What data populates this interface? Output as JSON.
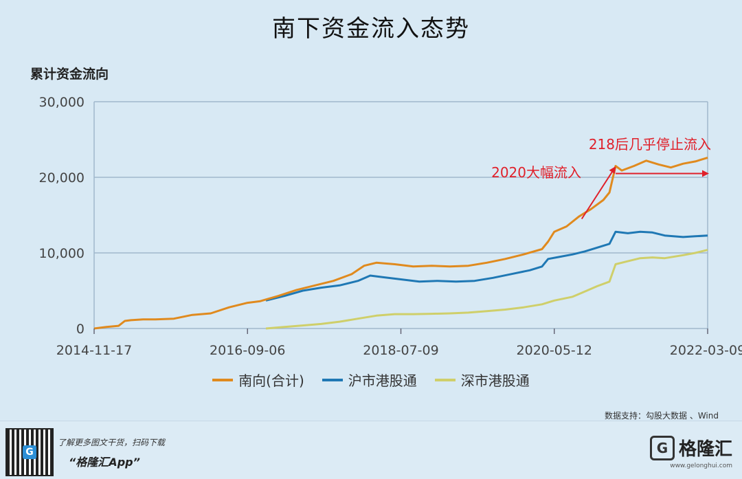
{
  "page": {
    "title": "南下资金流入态势",
    "source": "数据支持：勾股大数据 、Wind"
  },
  "footer": {
    "qr_label": "G",
    "line1": "了解更多图文干货，扫码下载",
    "line2": "“格隆汇App”",
    "brand_icon": "G",
    "brand_name": "格隆汇",
    "brand_url": "www.gelonghui.com"
  },
  "colors": {
    "south": "#e08a1e",
    "sh": "#1f78b4",
    "sz": "#cfcf6a",
    "annotation": "#e0202a",
    "grid": "#9fb8cc"
  },
  "chart_data": {
    "type": "line",
    "title": "南下资金流入态势",
    "ylabel": "累计资金流向",
    "xlabel": "",
    "ylim": [
      0,
      30000
    ],
    "yticks": [
      0,
      10000,
      20000,
      30000
    ],
    "ytick_labels": [
      "0",
      "10,000",
      "20,000",
      "30,000"
    ],
    "x_index_range": [
      0,
      100
    ],
    "xtick_labels": [
      "2014-11-17",
      "2016-09-06",
      "2018-07-09",
      "2020-05-12",
      "2022-03-09"
    ],
    "xtick_positions": [
      0,
      25,
      50,
      75,
      100
    ],
    "legend_position": "bottom-center",
    "series": [
      {
        "name": "南向(合计)",
        "color_key": "south",
        "points": [
          [
            0,
            0
          ],
          [
            2,
            200
          ],
          [
            4,
            350
          ],
          [
            5,
            1000
          ],
          [
            6,
            1100
          ],
          [
            8,
            1200
          ],
          [
            10,
            1200
          ],
          [
            13,
            1300
          ],
          [
            16,
            1800
          ],
          [
            19,
            2000
          ],
          [
            22,
            2800
          ],
          [
            25,
            3400
          ],
          [
            27,
            3600
          ],
          [
            30,
            4300
          ],
          [
            33,
            5100
          ],
          [
            36,
            5700
          ],
          [
            39,
            6300
          ],
          [
            42,
            7200
          ],
          [
            44,
            8300
          ],
          [
            46,
            8700
          ],
          [
            49,
            8500
          ],
          [
            52,
            8200
          ],
          [
            55,
            8300
          ],
          [
            58,
            8200
          ],
          [
            61,
            8300
          ],
          [
            64,
            8700
          ],
          [
            67,
            9200
          ],
          [
            70,
            9800
          ],
          [
            73,
            10500
          ],
          [
            74,
            11500
          ],
          [
            75,
            12800
          ],
          [
            77,
            13500
          ],
          [
            79,
            14800
          ],
          [
            81,
            15800
          ],
          [
            83,
            17000
          ],
          [
            84,
            18000
          ],
          [
            85,
            21500
          ],
          [
            86,
            20900
          ],
          [
            88,
            21500
          ],
          [
            90,
            22200
          ],
          [
            92,
            21700
          ],
          [
            94,
            21300
          ],
          [
            96,
            21800
          ],
          [
            98,
            22100
          ],
          [
            100,
            22600
          ]
        ]
      },
      {
        "name": "沪市港股通",
        "color_key": "sh",
        "points": [
          [
            28,
            3700
          ],
          [
            31,
            4300
          ],
          [
            34,
            5000
          ],
          [
            37,
            5400
          ],
          [
            40,
            5700
          ],
          [
            43,
            6300
          ],
          [
            45,
            7000
          ],
          [
            47,
            6800
          ],
          [
            50,
            6500
          ],
          [
            53,
            6200
          ],
          [
            56,
            6300
          ],
          [
            59,
            6200
          ],
          [
            62,
            6300
          ],
          [
            65,
            6700
          ],
          [
            68,
            7200
          ],
          [
            71,
            7700
          ],
          [
            73,
            8200
          ],
          [
            74,
            9200
          ],
          [
            76,
            9500
          ],
          [
            78,
            9800
          ],
          [
            80,
            10200
          ],
          [
            82,
            10700
          ],
          [
            84,
            11200
          ],
          [
            85,
            12800
          ],
          [
            87,
            12600
          ],
          [
            89,
            12800
          ],
          [
            91,
            12700
          ],
          [
            93,
            12300
          ],
          [
            96,
            12100
          ],
          [
            98,
            12200
          ],
          [
            100,
            12300
          ]
        ]
      },
      {
        "name": "深市港股通",
        "color_key": "sz",
        "points": [
          [
            28,
            0
          ],
          [
            31,
            200
          ],
          [
            34,
            400
          ],
          [
            37,
            600
          ],
          [
            40,
            900
          ],
          [
            43,
            1300
          ],
          [
            46,
            1700
          ],
          [
            49,
            1900
          ],
          [
            52,
            1900
          ],
          [
            55,
            1950
          ],
          [
            58,
            2000
          ],
          [
            61,
            2100
          ],
          [
            64,
            2300
          ],
          [
            67,
            2500
          ],
          [
            70,
            2800
          ],
          [
            73,
            3200
          ],
          [
            75,
            3700
          ],
          [
            78,
            4200
          ],
          [
            80,
            4900
          ],
          [
            82,
            5600
          ],
          [
            84,
            6200
          ],
          [
            85,
            8500
          ],
          [
            87,
            8900
          ],
          [
            89,
            9300
          ],
          [
            91,
            9400
          ],
          [
            93,
            9300
          ],
          [
            96,
            9700
          ],
          [
            98,
            10000
          ],
          [
            100,
            10400
          ]
        ]
      }
    ],
    "annotations": [
      {
        "text": "218后几乎停止流入",
        "arrow_from": [
          85,
          20500
        ],
        "arrow_to": [
          100,
          20500
        ]
      },
      {
        "text": "2020大幅流入",
        "arrow_from": [
          75,
          14500
        ],
        "arrow_to": [
          84,
          21300
        ]
      }
    ]
  }
}
